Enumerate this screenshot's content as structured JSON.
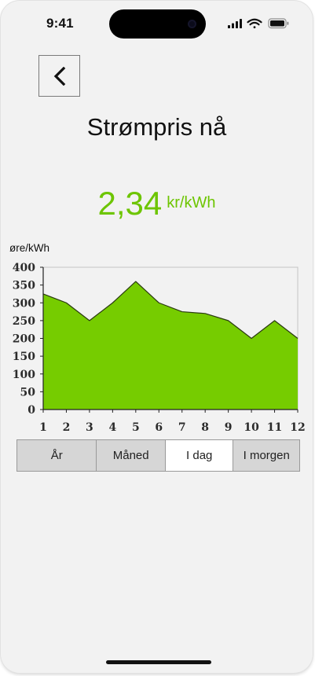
{
  "status_bar": {
    "time": "9:41"
  },
  "header": {
    "title": "Strømpris nå"
  },
  "price": {
    "value": "2,34",
    "unit": "kr/kWh",
    "color": "#6dc500"
  },
  "chart_data": {
    "type": "area",
    "x": [
      1,
      2,
      3,
      4,
      5,
      6,
      7,
      8,
      9,
      10,
      11,
      12
    ],
    "values": [
      325,
      300,
      250,
      300,
      360,
      300,
      275,
      270,
      250,
      200,
      250,
      200
    ],
    "ylabel": "øre/kWh",
    "xlabel": "",
    "ylim": [
      0,
      400
    ],
    "yticks": [
      0,
      50,
      100,
      150,
      200,
      250,
      300,
      350,
      400
    ],
    "fill_color": "#76cc00",
    "grid": false
  },
  "tabs": [
    {
      "label": "År",
      "active": false
    },
    {
      "label": "Måned",
      "active": false
    },
    {
      "label": "I dag",
      "active": true
    },
    {
      "label": "I morgen",
      "active": false
    }
  ]
}
